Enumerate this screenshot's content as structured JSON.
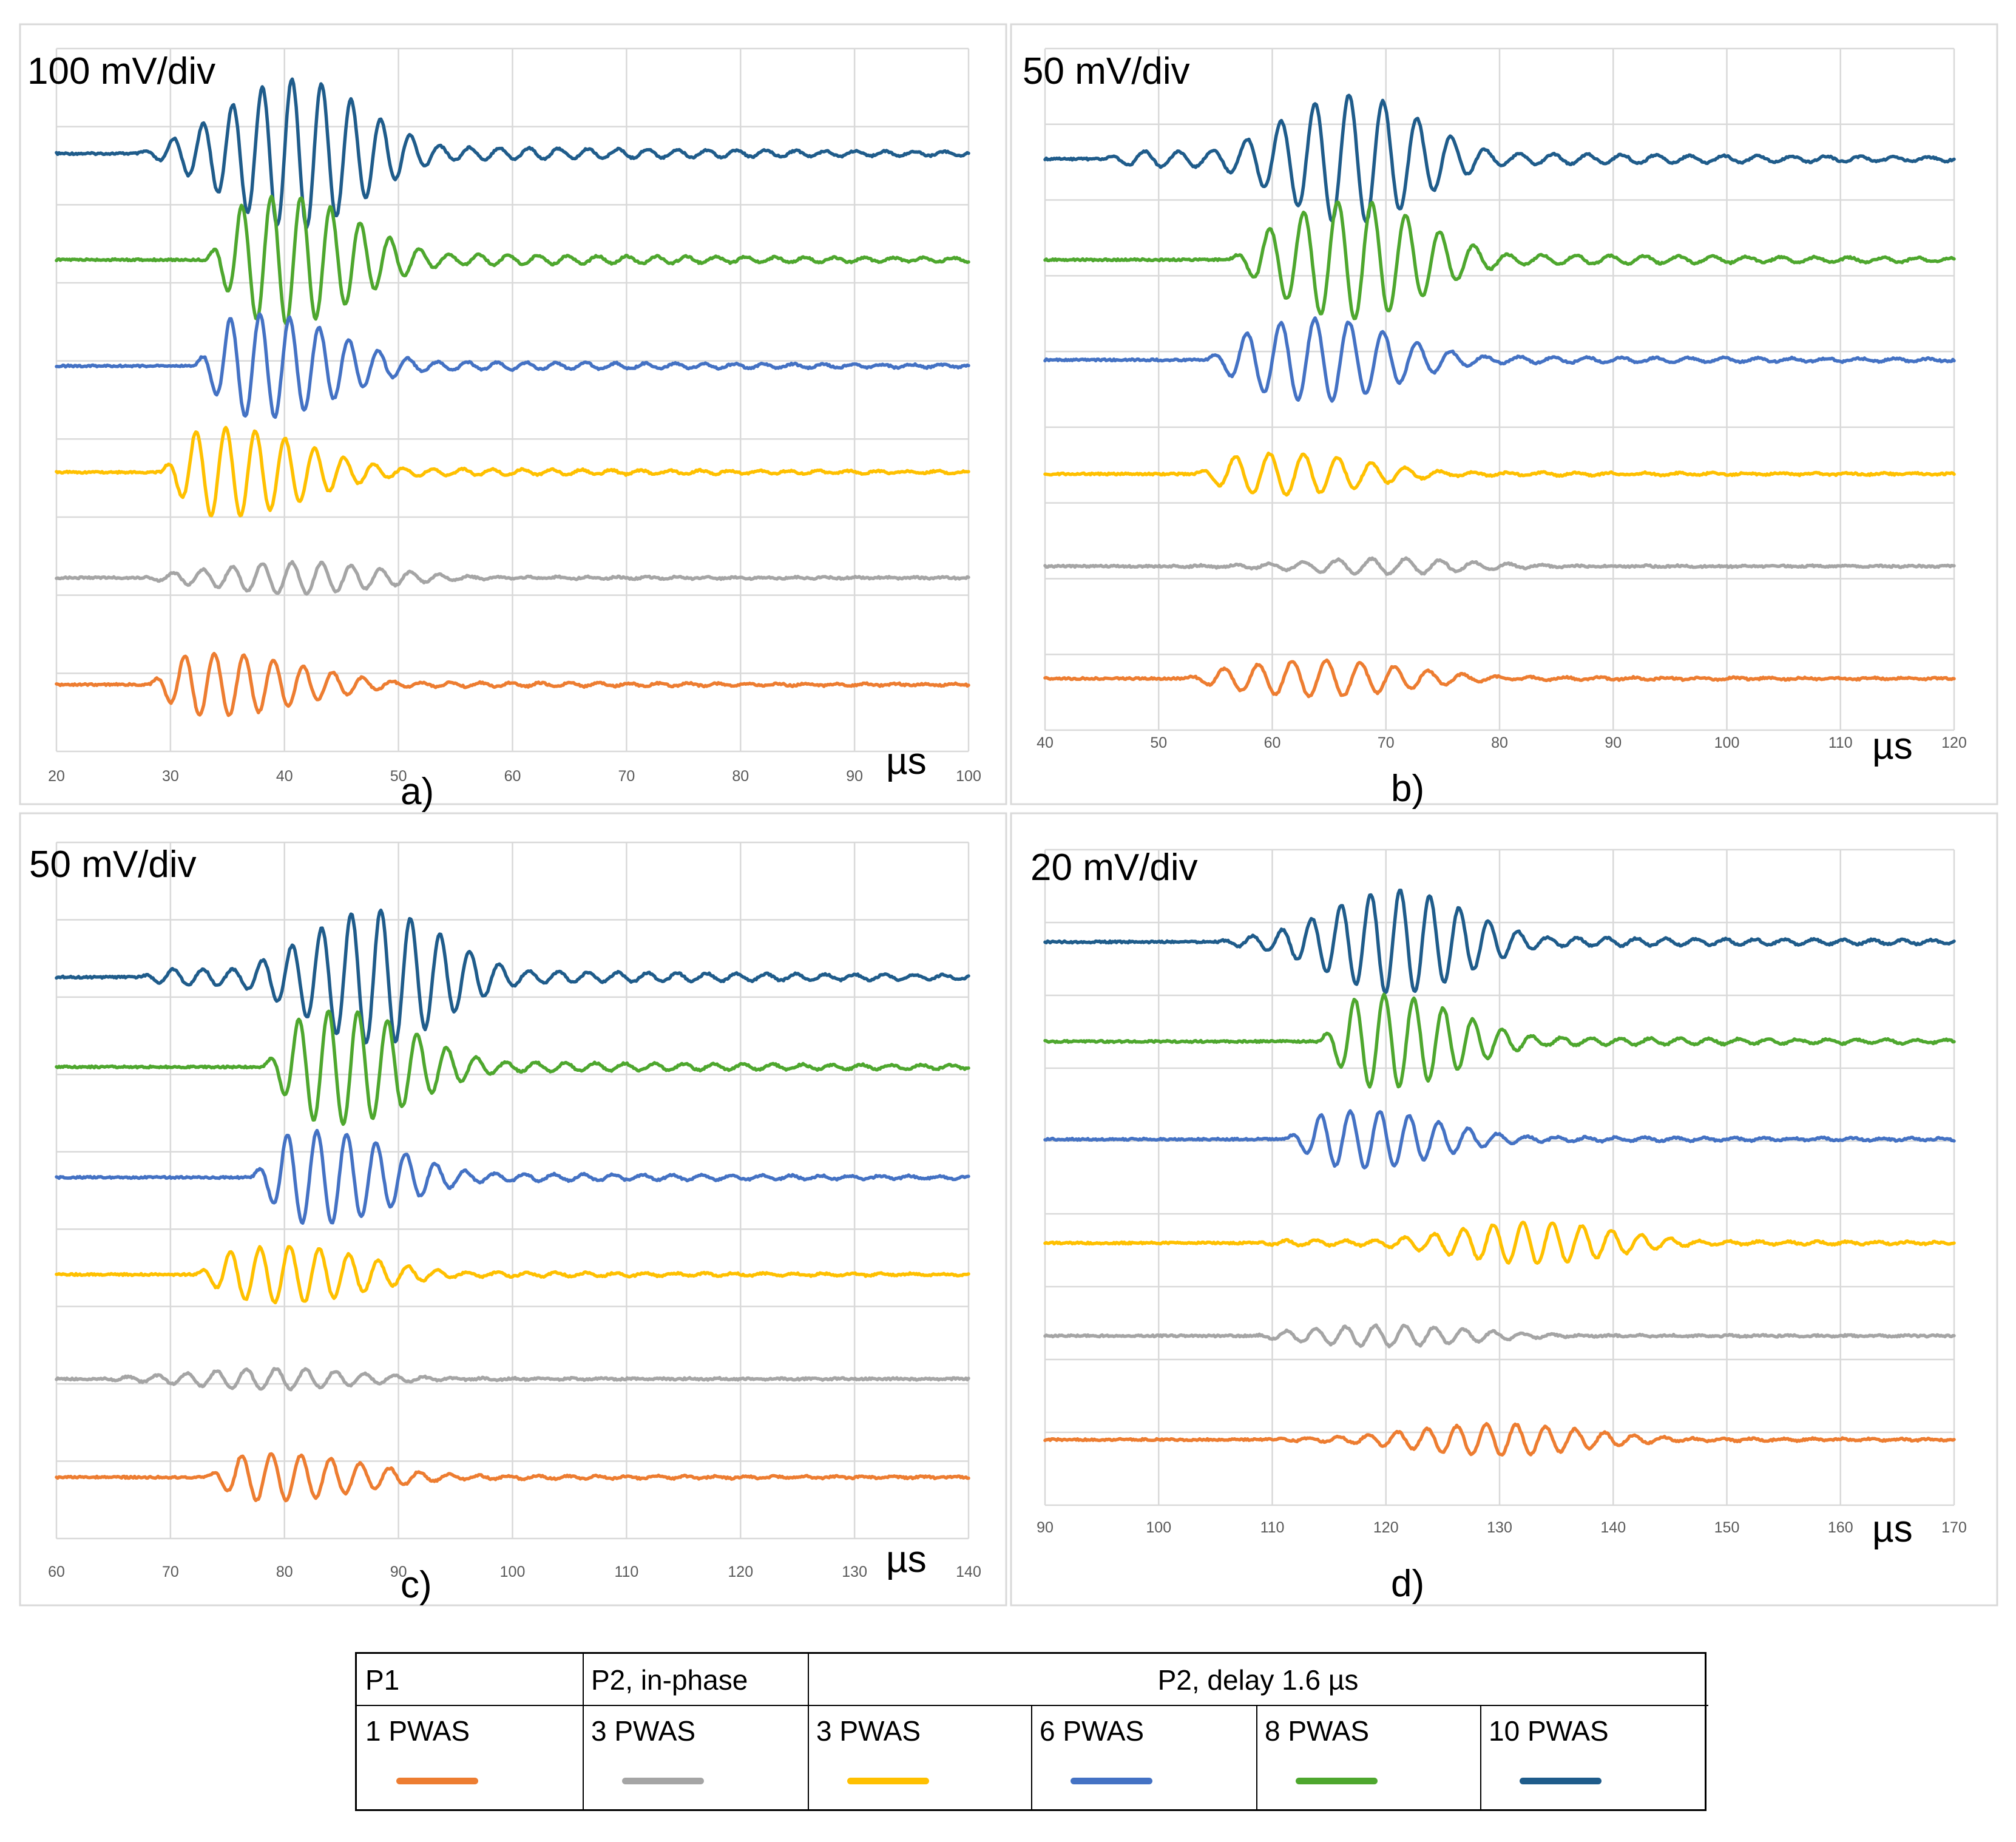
{
  "panels": [
    {
      "id": "a",
      "scale_label": "100 mV/div",
      "unit": "µs",
      "label": "a)",
      "xticks": [
        "20",
        "30",
        "40",
        "50",
        "60",
        "70",
        "80",
        "90",
        "100"
      ],
      "x_range": [
        20,
        100
      ]
    },
    {
      "id": "b",
      "scale_label": "50 mV/div",
      "unit": "µs",
      "label": "b)",
      "xticks": [
        "40",
        "50",
        "60",
        "70",
        "80",
        "90",
        "100",
        "110",
        "120"
      ],
      "x_range": [
        40,
        120
      ]
    },
    {
      "id": "c",
      "scale_label": "50 mV/div",
      "unit": "µs",
      "label": "c)",
      "xticks": [
        "60",
        "70",
        "80",
        "90",
        "100",
        "110",
        "120",
        "130",
        "140"
      ],
      "x_range": [
        60,
        140
      ]
    },
    {
      "id": "d",
      "scale_label": "20 mV/div",
      "unit": "µs",
      "label": "d)",
      "xticks": [
        "90",
        "100",
        "110",
        "120",
        "130",
        "140",
        "150",
        "160",
        "170"
      ],
      "x_range": [
        90,
        170
      ]
    }
  ],
  "legend": {
    "group_headers": [
      "P1",
      "P2, in-phase",
      "P2, delay 1.6 µs"
    ],
    "entries": [
      {
        "label": "1 PWAS",
        "color": "#ED7D31"
      },
      {
        "label": "3 PWAS",
        "color": "#A5A5A5"
      },
      {
        "label": "3 PWAS",
        "color": "#FFC000"
      },
      {
        "label": "6 PWAS",
        "color": "#4472C4"
      },
      {
        "label": "8 PWAS",
        "color": "#4EA72E"
      },
      {
        "label": "10 PWAS",
        "color": "#1F5C8B"
      }
    ]
  },
  "chart_data": [
    {
      "type": "line",
      "panel": "a)",
      "xlabel": "µs",
      "ylabel": "100 mV/div",
      "xlim": [
        20,
        100
      ],
      "series": [
        {
          "name": "10 PWAS",
          "color": "#1F5C8B",
          "onset_us": 27,
          "peak_us": 41,
          "peak_amplitude_div": 1.45
        },
        {
          "name": "8 PWAS",
          "color": "#4EA72E",
          "onset_us": 33,
          "peak_us": 40,
          "peak_amplitude_div": 1.25
        },
        {
          "name": "6 PWAS",
          "color": "#4472C4",
          "onset_us": 32,
          "peak_us": 38,
          "peak_amplitude_div": 1.0
        },
        {
          "name": "3 PWAS",
          "color": "#FFC000",
          "onset_us": 29,
          "peak_us": 35,
          "peak_amplitude_div": 0.85
        },
        {
          "name": "3 PWAS",
          "color": "#A5A5A5",
          "onset_us": 27,
          "peak_us": 41,
          "peak_amplitude_div": 0.3
        },
        {
          "name": "1 PWAS",
          "color": "#ED7D31",
          "onset_us": 28,
          "peak_us": 34,
          "peak_amplitude_div": 0.6
        }
      ]
    },
    {
      "type": "line",
      "panel": "b)",
      "xlabel": "µs",
      "ylabel": "50 mV/div",
      "xlim": [
        40,
        120
      ],
      "series": [
        {
          "name": "10 PWAS",
          "color": "#1F5C8B",
          "onset_us": 45,
          "peak_us": 67,
          "peak_amplitude_div": 1.25
        },
        {
          "name": "8 PWAS",
          "color": "#4EA72E",
          "onset_us": 56,
          "peak_us": 67,
          "peak_amplitude_div": 1.15
        },
        {
          "name": "6 PWAS",
          "color": "#4472C4",
          "onset_us": 54,
          "peak_us": 64,
          "peak_amplitude_div": 0.8
        },
        {
          "name": "3 PWAS",
          "color": "#FFC000",
          "onset_us": 53,
          "peak_us": 61,
          "peak_amplitude_div": 0.4
        },
        {
          "name": "3 PWAS",
          "color": "#A5A5A5",
          "onset_us": 50,
          "peak_us": 70,
          "peak_amplitude_div": 0.15
        },
        {
          "name": "1 PWAS",
          "color": "#ED7D31",
          "onset_us": 52,
          "peak_us": 64,
          "peak_amplitude_div": 0.35
        }
      ]
    },
    {
      "type": "line",
      "panel": "c)",
      "xlabel": "µs",
      "ylabel": "50 mV/div",
      "xlim": [
        60,
        140
      ],
      "series": [
        {
          "name": "10 PWAS",
          "color": "#1F5C8B",
          "onset_us": 67,
          "peak_us": 88,
          "peak_amplitude_div": 1.3
        },
        {
          "name": "8 PWAS",
          "color": "#4EA72E",
          "onset_us": 78,
          "peak_us": 85,
          "peak_amplitude_div": 1.1
        },
        {
          "name": "6 PWAS",
          "color": "#4472C4",
          "onset_us": 77,
          "peak_us": 83,
          "peak_amplitude_div": 0.9
        },
        {
          "name": "3 PWAS",
          "color": "#FFC000",
          "onset_us": 72,
          "peak_us": 80,
          "peak_amplitude_div": 0.55
        },
        {
          "name": "3 PWAS",
          "color": "#A5A5A5",
          "onset_us": 63,
          "peak_us": 79,
          "peak_amplitude_div": 0.2
        },
        {
          "name": "1 PWAS",
          "color": "#ED7D31",
          "onset_us": 73,
          "peak_us": 79,
          "peak_amplitude_div": 0.45
        }
      ]
    },
    {
      "type": "line",
      "panel": "d)",
      "xlabel": "µs",
      "ylabel": "20 mV/div",
      "xlim": [
        90,
        170
      ],
      "series": [
        {
          "name": "10 PWAS",
          "color": "#1F5C8B",
          "onset_us": 105,
          "peak_us": 121,
          "peak_amplitude_div": 1.0
        },
        {
          "name": "8 PWAS",
          "color": "#4EA72E",
          "onset_us": 114,
          "peak_us": 120,
          "peak_amplitude_div": 0.9
        },
        {
          "name": "6 PWAS",
          "color": "#4472C4",
          "onset_us": 111,
          "peak_us": 118,
          "peak_amplitude_div": 0.55
        },
        {
          "name": "3 PWAS",
          "color": "#FFC000",
          "onset_us": 108,
          "peak_us": 133,
          "peak_amplitude_div": 0.4
        },
        {
          "name": "3 PWAS",
          "color": "#A5A5A5",
          "onset_us": 108,
          "peak_us": 120,
          "peak_amplitude_div": 0.2
        },
        {
          "name": "1 PWAS",
          "color": "#ED7D31",
          "onset_us": 110,
          "peak_us": 130,
          "peak_amplitude_div": 0.3
        }
      ]
    }
  ]
}
